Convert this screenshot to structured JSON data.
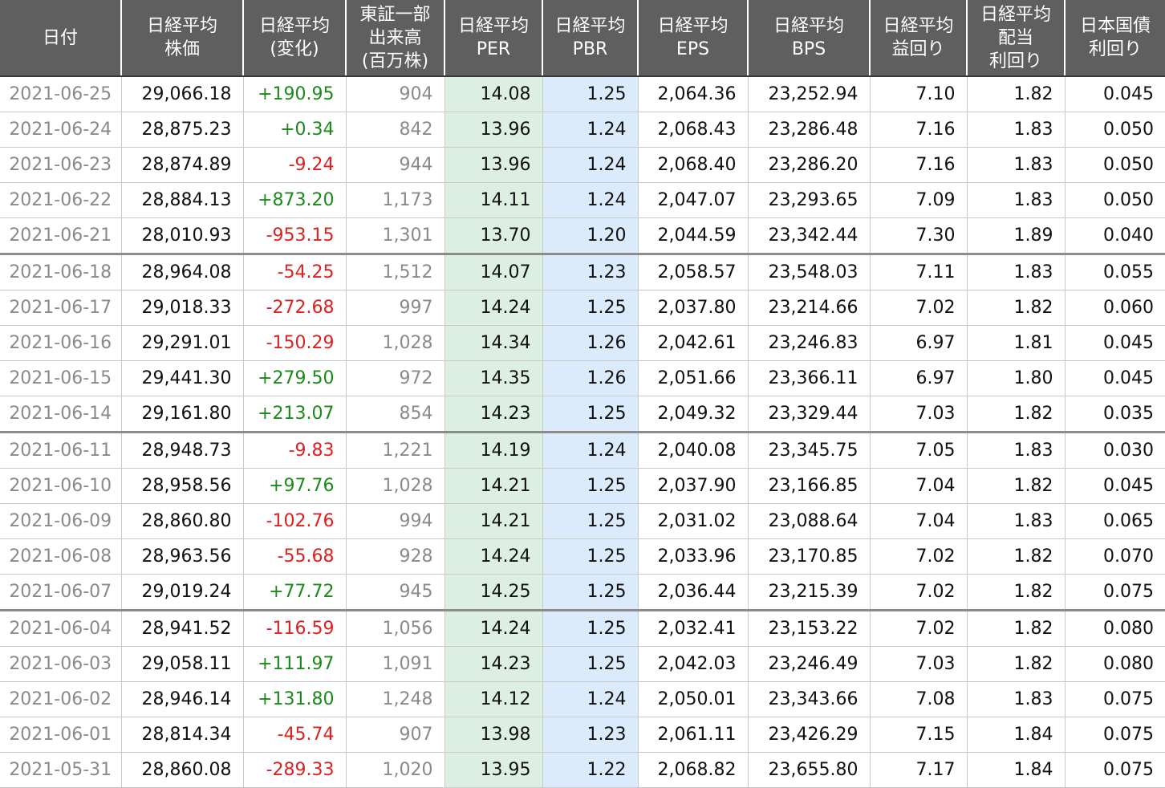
{
  "headers": [
    [
      "日付"
    ],
    [
      "日経平均",
      "株価"
    ],
    [
      "日経平均",
      "(変化)"
    ],
    [
      "東証一部",
      "出来高",
      "(百万株)"
    ],
    [
      "日経平均",
      "PER"
    ],
    [
      "日経平均",
      "PBR"
    ],
    [
      "日経平均",
      "EPS"
    ],
    [
      "日経平均",
      "BPS"
    ],
    [
      "日経平均",
      "益回り"
    ],
    [
      "日経平均",
      "配当",
      "利回り"
    ],
    [
      "日本国債",
      "利回り"
    ]
  ],
  "colors": {
    "header_bg": "#5f5f5f",
    "per_bg": "#dcefe0",
    "pbr_bg": "#dbebfb",
    "positive": "#1a8a1a",
    "negative": "#e02020"
  },
  "rows": [
    {
      "date": "2021-06-25",
      "price": "29,066.18",
      "change": "+190.95",
      "volume": "904",
      "per": "14.08",
      "pbr": "1.25",
      "eps": "2,064.36",
      "bps": "23,252.94",
      "earnings_yield": "7.10",
      "dividend_yield": "1.82",
      "jgb_yield": "0.045"
    },
    {
      "date": "2021-06-24",
      "price": "28,875.23",
      "change": "+0.34",
      "volume": "842",
      "per": "13.96",
      "pbr": "1.24",
      "eps": "2,068.43",
      "bps": "23,286.48",
      "earnings_yield": "7.16",
      "dividend_yield": "1.83",
      "jgb_yield": "0.050"
    },
    {
      "date": "2021-06-23",
      "price": "28,874.89",
      "change": "-9.24",
      "volume": "944",
      "per": "13.96",
      "pbr": "1.24",
      "eps": "2,068.40",
      "bps": "23,286.20",
      "earnings_yield": "7.16",
      "dividend_yield": "1.83",
      "jgb_yield": "0.050"
    },
    {
      "date": "2021-06-22",
      "price": "28,884.13",
      "change": "+873.20",
      "volume": "1,173",
      "per": "14.11",
      "pbr": "1.24",
      "eps": "2,047.07",
      "bps": "23,293.65",
      "earnings_yield": "7.09",
      "dividend_yield": "1.83",
      "jgb_yield": "0.050"
    },
    {
      "date": "2021-06-21",
      "price": "28,010.93",
      "change": "-953.15",
      "volume": "1,301",
      "per": "13.70",
      "pbr": "1.20",
      "eps": "2,044.59",
      "bps": "23,342.44",
      "earnings_yield": "7.30",
      "dividend_yield": "1.89",
      "jgb_yield": "0.040"
    },
    {
      "date": "2021-06-18",
      "price": "28,964.08",
      "change": "-54.25",
      "volume": "1,512",
      "per": "14.07",
      "pbr": "1.23",
      "eps": "2,058.57",
      "bps": "23,548.03",
      "earnings_yield": "7.11",
      "dividend_yield": "1.83",
      "jgb_yield": "0.055"
    },
    {
      "date": "2021-06-17",
      "price": "29,018.33",
      "change": "-272.68",
      "volume": "997",
      "per": "14.24",
      "pbr": "1.25",
      "eps": "2,037.80",
      "bps": "23,214.66",
      "earnings_yield": "7.02",
      "dividend_yield": "1.82",
      "jgb_yield": "0.060"
    },
    {
      "date": "2021-06-16",
      "price": "29,291.01",
      "change": "-150.29",
      "volume": "1,028",
      "per": "14.34",
      "pbr": "1.26",
      "eps": "2,042.61",
      "bps": "23,246.83",
      "earnings_yield": "6.97",
      "dividend_yield": "1.81",
      "jgb_yield": "0.045"
    },
    {
      "date": "2021-06-15",
      "price": "29,441.30",
      "change": "+279.50",
      "volume": "972",
      "per": "14.35",
      "pbr": "1.26",
      "eps": "2,051.66",
      "bps": "23,366.11",
      "earnings_yield": "6.97",
      "dividend_yield": "1.80",
      "jgb_yield": "0.045"
    },
    {
      "date": "2021-06-14",
      "price": "29,161.80",
      "change": "+213.07",
      "volume": "854",
      "per": "14.23",
      "pbr": "1.25",
      "eps": "2,049.32",
      "bps": "23,329.44",
      "earnings_yield": "7.03",
      "dividend_yield": "1.82",
      "jgb_yield": "0.035"
    },
    {
      "date": "2021-06-11",
      "price": "28,948.73",
      "change": "-9.83",
      "volume": "1,221",
      "per": "14.19",
      "pbr": "1.24",
      "eps": "2,040.08",
      "bps": "23,345.75",
      "earnings_yield": "7.05",
      "dividend_yield": "1.83",
      "jgb_yield": "0.030"
    },
    {
      "date": "2021-06-10",
      "price": "28,958.56",
      "change": "+97.76",
      "volume": "1,028",
      "per": "14.21",
      "pbr": "1.25",
      "eps": "2,037.90",
      "bps": "23,166.85",
      "earnings_yield": "7.04",
      "dividend_yield": "1.82",
      "jgb_yield": "0.045"
    },
    {
      "date": "2021-06-09",
      "price": "28,860.80",
      "change": "-102.76",
      "volume": "994",
      "per": "14.21",
      "pbr": "1.25",
      "eps": "2,031.02",
      "bps": "23,088.64",
      "earnings_yield": "7.04",
      "dividend_yield": "1.83",
      "jgb_yield": "0.065"
    },
    {
      "date": "2021-06-08",
      "price": "28,963.56",
      "change": "-55.68",
      "volume": "928",
      "per": "14.24",
      "pbr": "1.25",
      "eps": "2,033.96",
      "bps": "23,170.85",
      "earnings_yield": "7.02",
      "dividend_yield": "1.82",
      "jgb_yield": "0.070"
    },
    {
      "date": "2021-06-07",
      "price": "29,019.24",
      "change": "+77.72",
      "volume": "945",
      "per": "14.25",
      "pbr": "1.25",
      "eps": "2,036.44",
      "bps": "23,215.39",
      "earnings_yield": "7.02",
      "dividend_yield": "1.82",
      "jgb_yield": "0.075"
    },
    {
      "date": "2021-06-04",
      "price": "28,941.52",
      "change": "-116.59",
      "volume": "1,056",
      "per": "14.24",
      "pbr": "1.25",
      "eps": "2,032.41",
      "bps": "23,153.22",
      "earnings_yield": "7.02",
      "dividend_yield": "1.82",
      "jgb_yield": "0.080"
    },
    {
      "date": "2021-06-03",
      "price": "29,058.11",
      "change": "+111.97",
      "volume": "1,091",
      "per": "14.23",
      "pbr": "1.25",
      "eps": "2,042.03",
      "bps": "23,246.49",
      "earnings_yield": "7.03",
      "dividend_yield": "1.82",
      "jgb_yield": "0.080"
    },
    {
      "date": "2021-06-02",
      "price": "28,946.14",
      "change": "+131.80",
      "volume": "1,248",
      "per": "14.12",
      "pbr": "1.24",
      "eps": "2,050.01",
      "bps": "23,343.66",
      "earnings_yield": "7.08",
      "dividend_yield": "1.83",
      "jgb_yield": "0.075"
    },
    {
      "date": "2021-06-01",
      "price": "28,814.34",
      "change": "-45.74",
      "volume": "907",
      "per": "13.98",
      "pbr": "1.23",
      "eps": "2,061.11",
      "bps": "23,426.29",
      "earnings_yield": "7.15",
      "dividend_yield": "1.84",
      "jgb_yield": "0.075"
    },
    {
      "date": "2021-05-31",
      "price": "28,860.08",
      "change": "-289.33",
      "volume": "1,020",
      "per": "13.95",
      "pbr": "1.22",
      "eps": "2,068.82",
      "bps": "23,655.80",
      "earnings_yield": "7.17",
      "dividend_yield": "1.84",
      "jgb_yield": "0.075"
    }
  ]
}
